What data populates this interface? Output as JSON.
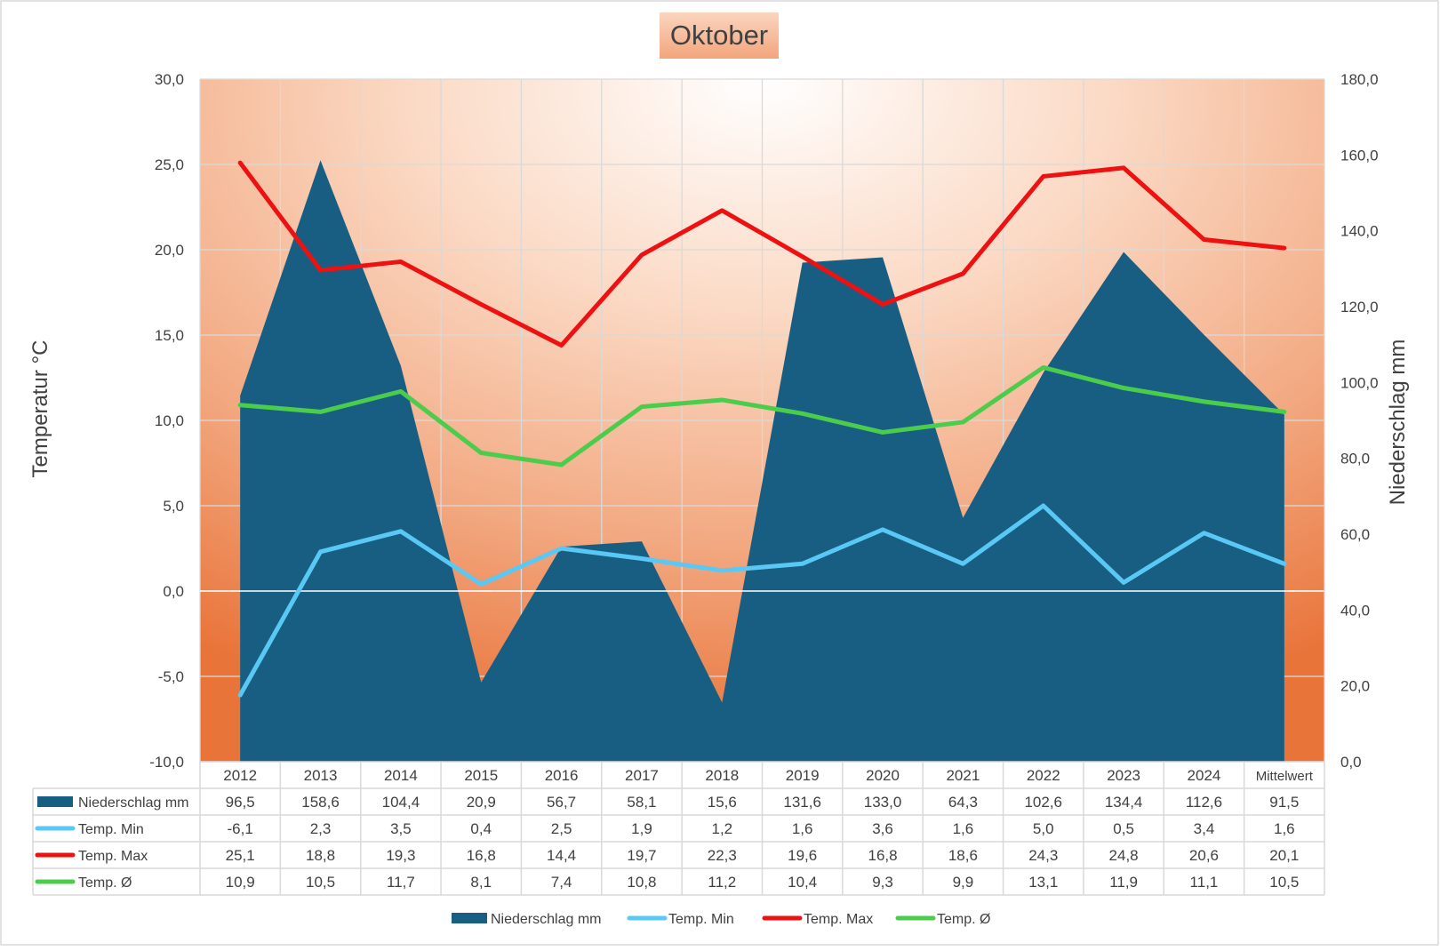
{
  "chart_data": {
    "type": "area",
    "title": "Oktober",
    "ylabel_left": "Temperatur °C",
    "ylabel_right": "Niederschlag mm",
    "ylim_left": [
      -10,
      30
    ],
    "ylim_right": [
      0,
      180
    ],
    "yticks_left": [
      "30,0",
      "25,0",
      "20,0",
      "15,0",
      "10,0",
      "5,0",
      "0,0",
      "-5,0",
      "-10,0"
    ],
    "yticks_right": [
      "180,0",
      "160,0",
      "140,0",
      "120,0",
      "100,0",
      "80,0",
      "60,0",
      "40,0",
      "20,0",
      "0,0"
    ],
    "grid": true,
    "legend_position": "bottom",
    "categories": [
      "2012",
      "2013",
      "2014",
      "2015",
      "2016",
      "2017",
      "2018",
      "2019",
      "2020",
      "2021",
      "2022",
      "2023",
      "2024",
      "Mittelwert"
    ],
    "series": [
      {
        "name": "Niederschlag mm",
        "type": "area",
        "axis": "right",
        "color": "#175e82",
        "values": [
          96.5,
          158.6,
          104.4,
          20.9,
          56.7,
          58.1,
          15.6,
          131.6,
          133.0,
          64.3,
          102.6,
          134.4,
          112.6,
          91.5
        ],
        "labels": [
          "96,5",
          "158,6",
          "104,4",
          "20,9",
          "56,7",
          "58,1",
          "15,6",
          "131,6",
          "133,0",
          "64,3",
          "102,6",
          "134,4",
          "112,6",
          "91,5"
        ]
      },
      {
        "name": "Temp. Min",
        "type": "line",
        "axis": "left",
        "color": "#5ac8f5",
        "values": [
          -6.1,
          2.3,
          3.5,
          0.4,
          2.5,
          1.9,
          1.2,
          1.6,
          3.6,
          1.6,
          5.0,
          0.5,
          3.4,
          1.6
        ],
        "labels": [
          "-6,1",
          "2,3",
          "3,5",
          "0,4",
          "2,5",
          "1,9",
          "1,2",
          "1,6",
          "3,6",
          "1,6",
          "5,0",
          "0,5",
          "3,4",
          "1,6"
        ]
      },
      {
        "name": "Temp. Max",
        "type": "line",
        "axis": "left",
        "color": "#ee1111",
        "values": [
          25.1,
          18.8,
          19.3,
          16.8,
          14.4,
          19.7,
          22.3,
          19.6,
          16.8,
          18.6,
          24.3,
          24.8,
          20.6,
          20.1
        ],
        "labels": [
          "25,1",
          "18,8",
          "19,3",
          "16,8",
          "14,4",
          "19,7",
          "22,3",
          "19,6",
          "16,8",
          "18,6",
          "24,3",
          "24,8",
          "20,6",
          "20,1"
        ]
      },
      {
        "name": "Temp. Ø",
        "type": "line",
        "axis": "left",
        "color": "#4ccc4c",
        "values": [
          10.9,
          10.5,
          11.7,
          8.1,
          7.4,
          10.8,
          11.2,
          10.4,
          9.3,
          9.9,
          13.1,
          11.9,
          11.1,
          10.5
        ],
        "labels": [
          "10,9",
          "10,5",
          "11,7",
          "8,1",
          "7,4",
          "10,8",
          "11,2",
          "10,4",
          "9,3",
          "9,9",
          "13,1",
          "11,9",
          "11,1",
          "10,5"
        ]
      }
    ]
  },
  "colors": {
    "plot_edge": "#ea7a3a",
    "plot_center": "#ffffff",
    "title_bg": "#f3b08a",
    "text": "#404040",
    "grid": "#d9d9d9"
  }
}
